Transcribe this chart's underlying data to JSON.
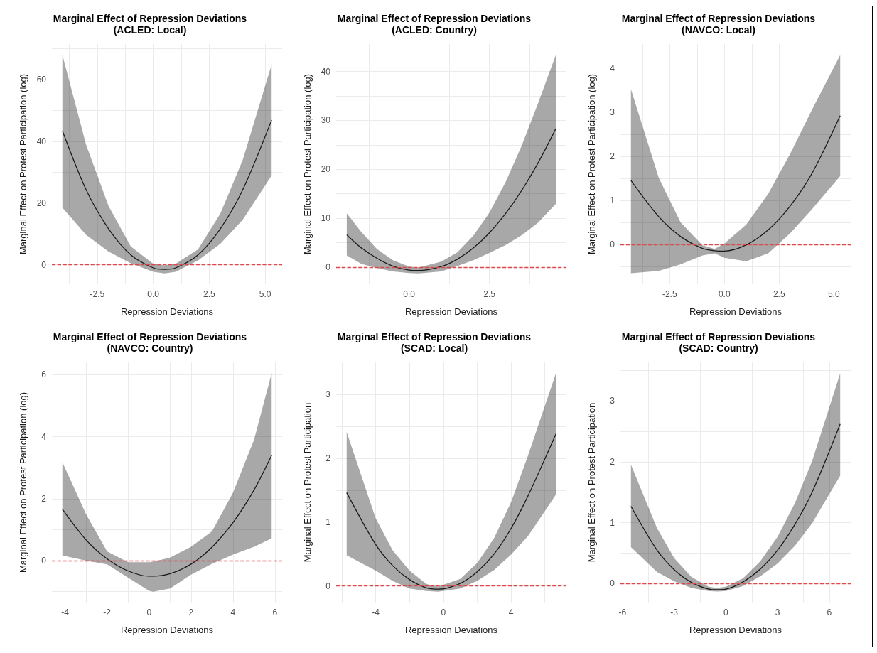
{
  "chart_data": [
    {
      "type": "line",
      "title": "Marginal Effect of Repression Deviations",
      "subtitle": "(ACLED: Local)",
      "xlabel": "Repression Deviations",
      "ylabel": "Marginal Effect on Protest Participation (log)",
      "xlim": [
        -4.53,
        5.76
      ],
      "ylim": [
        -6.3,
        71.5
      ],
      "xticks": [
        {
          "value": -3.75,
          "label": null
        },
        -2.5,
        {
          "value": -1.25,
          "label": null
        },
        {
          "value": 0,
          "label": "0.0"
        },
        {
          "value": 1.25,
          "label": null
        },
        2.5,
        {
          "value": 3.75,
          "label": null
        },
        {
          "value": 5,
          "label": "5.0"
        }
      ],
      "yticks": [
        0,
        {
          "value": 10,
          "label": null
        },
        20,
        {
          "value": 30,
          "label": null
        },
        40,
        {
          "value": 50,
          "label": null
        },
        60,
        {
          "value": 70,
          "label": null
        }
      ],
      "grid": true,
      "marker": "none",
      "ref_lines": [
        {
          "axis": "y",
          "value": 0,
          "color": "#e0474c",
          "line_style": "dashed"
        }
      ],
      "series": [
        {
          "color": "#1a1a1a",
          "x": [
            -4.06,
            -3,
            -2,
            -1,
            0,
            0.5,
            1,
            2,
            3,
            4,
            5.29
          ],
          "values": [
            43.4,
            24.3,
            11.7,
            3.2,
            -1.0,
            -1.5,
            -1.0,
            3.2,
            11.7,
            24.3,
            46.9
          ],
          "lower": [
            18.5,
            9.7,
            4.3,
            0.5,
            -2.3,
            -2.8,
            -2.3,
            1.4,
            6.8,
            14.6,
            28.9
          ],
          "upper": [
            68,
            38.9,
            19.1,
            5.9,
            0.3,
            -0.2,
            0.3,
            5.0,
            16.6,
            34,
            64.9
          ]
        }
      ]
    },
    {
      "type": "line",
      "title": "Marginal Effect of Repression Deviations",
      "subtitle": "(ACLED: Country)",
      "xlabel": "Repression Deviations",
      "ylabel": "Marginal Effect on Protest Participation (log)",
      "xlim": [
        -2.27,
        4.9
      ],
      "ylim": [
        -3.5,
        45.6
      ],
      "xticks": [
        {
          "value": -1.25,
          "label": null
        },
        {
          "value": 0,
          "label": "0.0"
        },
        {
          "value": 1.25,
          "label": null
        },
        2.5,
        {
          "value": 3.75,
          "label": null
        }
      ],
      "yticks": [
        0,
        {
          "value": 5,
          "label": null
        },
        10,
        {
          "value": 15,
          "label": null
        },
        20,
        {
          "value": 25,
          "label": null
        },
        30,
        {
          "value": 35,
          "label": null
        },
        40
      ],
      "grid": true,
      "marker": "none",
      "ref_lines": [
        {
          "axis": "y",
          "value": 0,
          "color": "#e0474c",
          "line_style": "dashed"
        }
      ],
      "series": [
        {
          "color": "#1a1a1a",
          "x": [
            -1.94,
            -1.5,
            -1,
            -0.5,
            0,
            0.3,
            1,
            1.5,
            2,
            2.5,
            3,
            3.5,
            4,
            4.57
          ],
          "values": [
            6.6,
            4.0,
            1.8,
            0.2,
            -0.6,
            -0.7,
            0.1,
            1.6,
            3.9,
            7.0,
            10.9,
            15.6,
            21.1,
            28.3
          ],
          "lower": [
            2.4,
            0.7,
            -0.2,
            -0.9,
            -1.2,
            -1.3,
            -0.9,
            0.2,
            1.4,
            2.9,
            4.5,
            6.5,
            9.0,
            12.9
          ],
          "upper": [
            11,
            7.3,
            3.7,
            1.4,
            0.1,
            -0.1,
            1.1,
            3.0,
            6.4,
            11.1,
            17.3,
            24.7,
            33.2,
            43.4
          ]
        }
      ]
    },
    {
      "type": "line",
      "title": "Marginal Effect of Repression Deviations",
      "subtitle": "(NAVCO: Local)",
      "xlabel": "Repression Deviations",
      "ylabel": "Marginal Effect on Protest Participation (log)",
      "xlim": [
        -4.75,
        5.77
      ],
      "ylim": [
        -0.9,
        4.54
      ],
      "xticks": [
        {
          "value": -3.75,
          "label": null
        },
        -2.5,
        {
          "value": -1.25,
          "label": null
        },
        {
          "value": 0,
          "label": "0.0"
        },
        {
          "value": 1.25,
          "label": null
        },
        2.5,
        {
          "value": 3.75,
          "label": null
        },
        {
          "value": 5,
          "label": "5.0"
        }
      ],
      "yticks": [
        {
          "value": -0.5,
          "label": null
        },
        0,
        {
          "value": 0.5,
          "label": null
        },
        1,
        {
          "value": 1.5,
          "label": null
        },
        2,
        {
          "value": 2.5,
          "label": null
        },
        3,
        {
          "value": 3.5,
          "label": null
        },
        4
      ],
      "grid": true,
      "marker": "none",
      "ref_lines": [
        {
          "axis": "y",
          "value": 0,
          "color": "#e0474c",
          "line_style": "dashed"
        }
      ],
      "series": [
        {
          "color": "#1a1a1a",
          "x": [
            -4.27,
            -3,
            -2,
            -1,
            -0.45,
            0,
            1,
            2,
            3,
            4,
            5.29
          ],
          "values": [
            1.45,
            0.63,
            0.18,
            -0.09,
            -0.14,
            -0.15,
            -0.01,
            0.33,
            0.87,
            1.61,
            2.92
          ],
          "lower": [
            -0.65,
            -0.6,
            -0.45,
            -0.25,
            -0.2,
            -0.3,
            -0.38,
            -0.2,
            0.25,
            0.8,
            1.55
          ],
          "upper": [
            3.52,
            1.51,
            0.5,
            -0.02,
            -0.1,
            0.02,
            0.45,
            1.15,
            2.05,
            3.05,
            4.29
          ]
        }
      ]
    },
    {
      "type": "line",
      "title": "Marginal Effect of Repression Deviations",
      "subtitle": "(NAVCO: Country)",
      "xlabel": "Repression Deviations",
      "ylabel": "Marginal Effect on Protest Participation (log)",
      "xlim": [
        -4.63,
        6.34
      ],
      "ylim": [
        -1.35,
        6.4
      ],
      "xticks": [
        -4,
        {
          "value": -3,
          "label": null
        },
        -2,
        {
          "value": -1,
          "label": null
        },
        0,
        {
          "value": 1,
          "label": null
        },
        2,
        {
          "value": 3,
          "label": null
        },
        4,
        {
          "value": 5,
          "label": null
        },
        6
      ],
      "yticks": [
        {
          "value": -1,
          "label": null
        },
        0,
        {
          "value": 1,
          "label": null
        },
        2,
        {
          "value": 3,
          "label": null
        },
        4,
        {
          "value": 5,
          "label": null
        },
        6
      ],
      "grid": true,
      "marker": "none",
      "ref_lines": [
        {
          "axis": "y",
          "value": 0,
          "color": "#e0474c",
          "line_style": "dashed"
        }
      ],
      "series": [
        {
          "color": "#1a1a1a",
          "x": [
            -4.13,
            -3,
            -2,
            -1,
            0,
            0.2,
            1,
            2,
            3,
            4,
            5,
            5.84
          ],
          "values": [
            1.66,
            0.67,
            0.06,
            -0.33,
            -0.5,
            -0.5,
            -0.42,
            -0.11,
            0.44,
            1.23,
            2.28,
            3.4
          ],
          "lower": [
            0.17,
            0.0,
            -0.12,
            -0.55,
            -0.97,
            -1.0,
            -0.9,
            -0.45,
            -0.1,
            0.2,
            0.45,
            0.72
          ],
          "upper": [
            3.18,
            1.5,
            0.3,
            -0.05,
            -0.05,
            -0.03,
            0.1,
            0.45,
            0.95,
            2.2,
            3.9,
            6.05
          ]
        }
      ]
    },
    {
      "type": "line",
      "title": "Marginal Effect of Repression Deviations",
      "subtitle": "(SCAD: Local)",
      "xlabel": "Repression Deviations",
      "ylabel": "Marginal Effect on Protest Participation",
      "xlim": [
        -6.33,
        7.27
      ],
      "ylim": [
        -0.26,
        3.5
      ],
      "xticks": [
        {
          "value": -6,
          "label": null
        },
        -4,
        {
          "value": -2,
          "label": null
        },
        0,
        {
          "value": 2,
          "label": null
        },
        4,
        {
          "value": 6,
          "label": null
        }
      ],
      "yticks": [
        0,
        {
          "value": 0.5,
          "label": null
        },
        1,
        {
          "value": 1.5,
          "label": null
        },
        2,
        {
          "value": 2.5,
          "label": null
        },
        3
      ],
      "grid": true,
      "marker": "none",
      "ref_lines": [
        {
          "axis": "y",
          "value": 0,
          "color": "#e0474c",
          "line_style": "dashed"
        }
      ],
      "series": [
        {
          "color": "#1a1a1a",
          "x": [
            -5.71,
            -4,
            -3,
            -2,
            -1,
            -0.3,
            1,
            2,
            3,
            4,
            5,
            6.65
          ],
          "values": [
            1.46,
            0.65,
            0.32,
            0.1,
            -0.03,
            -0.05,
            0.04,
            0.22,
            0.5,
            0.9,
            1.41,
            2.38
          ],
          "lower": [
            0.48,
            0.24,
            0.08,
            -0.04,
            -0.08,
            -0.09,
            -0.04,
            0.08,
            0.25,
            0.49,
            0.78,
            1.43
          ],
          "upper": [
            2.41,
            1.06,
            0.56,
            0.24,
            0.03,
            -0.01,
            0.11,
            0.36,
            0.75,
            1.31,
            2.04,
            3.33
          ]
        }
      ]
    },
    {
      "type": "line",
      "title": "Marginal Effect of Repression Deviations",
      "subtitle": "(SCAD: Country)",
      "xlabel": "Repression Deviations",
      "ylabel": "Marginal Effect on Protest Participation",
      "xlim": [
        -6.12,
        7.24
      ],
      "ylim": [
        -0.31,
        3.63
      ],
      "xticks": [
        -6,
        {
          "value": -4.5,
          "label": null
        },
        -3,
        {
          "value": -1.5,
          "label": null
        },
        0,
        {
          "value": 1.5,
          "label": null
        },
        3,
        {
          "value": 4.5,
          "label": null
        },
        6
      ],
      "yticks": [
        0,
        {
          "value": 0.5,
          "label": null
        },
        1,
        {
          "value": 1.5,
          "label": null
        },
        2,
        {
          "value": 2.5,
          "label": null
        },
        3,
        {
          "value": 3.5,
          "label": null
        }
      ],
      "grid": true,
      "marker": "none",
      "ref_lines": [
        {
          "axis": "y",
          "value": 0,
          "color": "#e0474c",
          "line_style": "dashed"
        }
      ],
      "series": [
        {
          "color": "#1a1a1a",
          "x": [
            -5.51,
            -4,
            -3,
            -2,
            -1,
            -0.53,
            0,
            1,
            2,
            3,
            4,
            5,
            6.63
          ],
          "values": [
            1.27,
            0.55,
            0.23,
            0.02,
            -0.09,
            -0.1,
            -0.09,
            0.03,
            0.24,
            0.55,
            0.97,
            1.5,
            2.62
          ],
          "lower": [
            0.6,
            0.19,
            0.04,
            -0.07,
            -0.12,
            -0.13,
            -0.12,
            -0.04,
            0.12,
            0.33,
            0.62,
            0.99,
            1.77
          ],
          "upper": [
            1.95,
            0.91,
            0.42,
            0.11,
            -0.05,
            -0.07,
            -0.05,
            0.09,
            0.37,
            0.77,
            1.32,
            2.01,
            3.45
          ]
        }
      ]
    }
  ]
}
